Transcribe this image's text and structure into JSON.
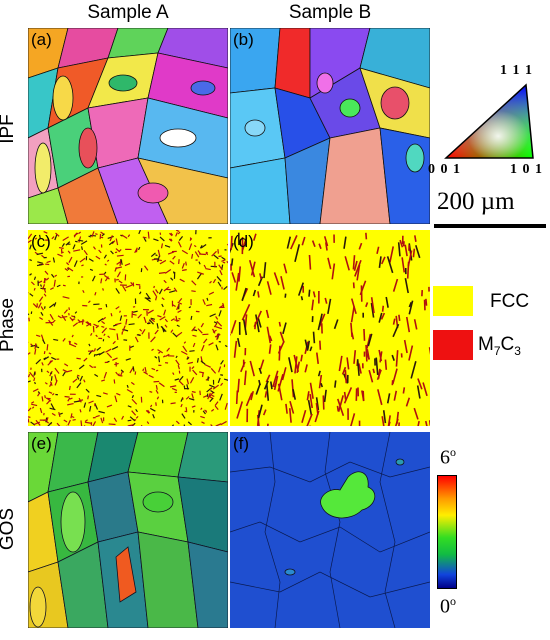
{
  "columns": {
    "a": "Sample A",
    "b": "Sample B"
  },
  "rows": {
    "ipf": "IPF",
    "phase": "Phase",
    "gos": "GOS"
  },
  "panels": {
    "a": "(a)",
    "b": "(b)",
    "c": "(c)",
    "d": "(d)",
    "e": "(e)",
    "f": "(f)"
  },
  "ipf_key": {
    "top": "1 1 1",
    "left": "0 0 1",
    "right": "1 0 1"
  },
  "scale_bar": "200 µm",
  "phase_legend": [
    {
      "base": "FCC",
      "sub1": "",
      "mid": "",
      "sub2": "",
      "color": "#ffff00"
    },
    {
      "base": "M",
      "sub1": "7",
      "mid": "C",
      "sub2": "3",
      "color": "#ee1111"
    }
  ],
  "colorbar": {
    "max": "6",
    "min": "0",
    "unit": "o"
  }
}
